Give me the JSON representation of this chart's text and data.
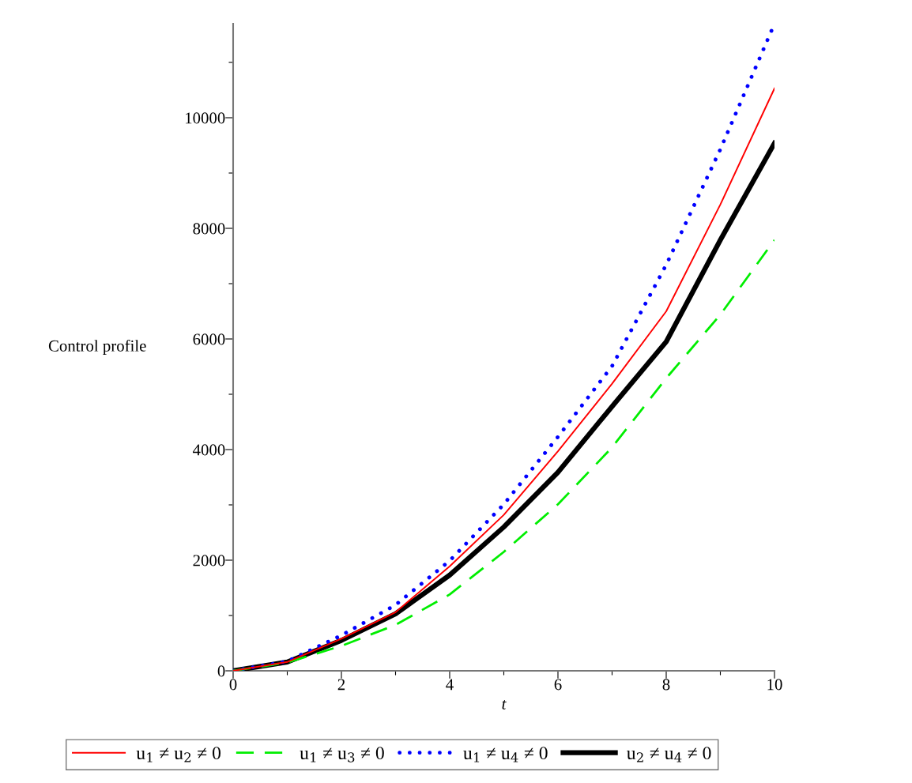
{
  "chart_data": {
    "type": "line",
    "xlabel": "t",
    "ylabel": "Control profile",
    "x": [
      0,
      1,
      2,
      3,
      4,
      5,
      6,
      7,
      8,
      9,
      10
    ],
    "series": [
      {
        "name": "u$_{1}$ ≠ u$_{2}$ ≠ 0",
        "color": "#ff0000",
        "line_style": "solid",
        "values": [
          0,
          160,
          580,
          1060,
          1890,
          2820,
          3970,
          5190,
          6500,
          8430,
          10530
        ]
      },
      {
        "name": "u$_{1}$ ≠ u$_{3}$ ≠ 0",
        "color": "#00ee00",
        "line_style": "dashed",
        "values": [
          0,
          150,
          450,
          830,
          1380,
          2150,
          3010,
          4040,
          5290,
          6440,
          7790
        ]
      },
      {
        "name": "u$_{1}$ ≠ u$_{4}$ ≠ 0",
        "color": "#0000ff",
        "line_style": "dotted",
        "values": [
          0,
          170,
          640,
          1190,
          1990,
          3010,
          4230,
          5510,
          7340,
          9430,
          11700
        ]
      },
      {
        "name": "u$_{2}$ ≠ u$_{4}$ ≠ 0",
        "color": "#000000",
        "line_style": "solid",
        "values": [
          0,
          160,
          550,
          1030,
          1730,
          2600,
          3590,
          4780,
          5950,
          7790,
          9540
        ]
      }
    ],
    "xlim": [
      0,
      10
    ],
    "ylim": [
      0,
      11700
    ],
    "xticks": [
      0,
      {
        "value": 1,
        "label": null
      },
      2,
      {
        "value": 3,
        "label": null
      },
      4,
      {
        "value": 5,
        "label": null
      },
      6,
      {
        "value": 7,
        "label": null
      },
      8,
      {
        "value": 9,
        "label": null
      },
      10
    ],
    "yticks": [
      0,
      {
        "value": 1000,
        "label": null
      },
      2000,
      {
        "value": 3000,
        "label": null
      },
      4000,
      {
        "value": 5000,
        "label": null
      },
      6000,
      {
        "value": 7000,
        "label": null
      },
      8000,
      {
        "value": 9000,
        "label": null
      },
      10000,
      {
        "value": 11000,
        "label": null
      }
    ],
    "grid": false,
    "legend": "bottom",
    "marker": "none"
  }
}
